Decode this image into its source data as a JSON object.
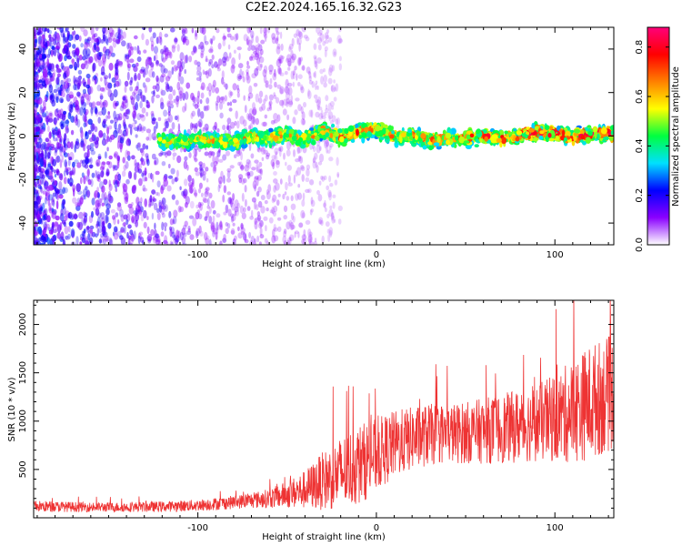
{
  "title": "C2E2.2024.165.16.32.G23",
  "chart_data": [
    {
      "type": "heatmap",
      "xlabel": "Height of straight line (km)",
      "ylabel": "Frequency (Hz)",
      "xlim": [
        -192,
        133
      ],
      "ylim": [
        -50,
        50
      ],
      "xticks": [
        -100,
        0,
        100
      ],
      "yticks": [
        -40,
        -20,
        0,
        20,
        40
      ],
      "colorbar": {
        "label": "Normalized spectral amplitude",
        "range": [
          0.0,
          0.88
        ],
        "ticks": [
          0.0,
          0.2,
          0.4,
          0.6,
          0.8
        ],
        "colors": [
          "#ffffff",
          "#8a00ff",
          "#0000ff",
          "#00e0ff",
          "#00ff40",
          "#ffff00",
          "#ff8000",
          "#ff0000",
          "#ff007a"
        ]
      },
      "ridge": {
        "x": [
          -122,
          -110,
          -100,
          -90,
          -80,
          -70,
          -60,
          -50,
          -40,
          -30,
          -20,
          -10,
          0,
          10,
          20,
          30,
          40,
          50,
          60,
          70,
          80,
          90,
          100,
          110,
          120,
          133
        ],
        "y": [
          -2,
          -3,
          -1,
          -2,
          -3,
          0,
          -1,
          1,
          -2,
          3,
          -1,
          2,
          3,
          0,
          0,
          -2,
          -1,
          -1,
          0,
          -1,
          0,
          2,
          1,
          0,
          1,
          1
        ],
        "peak_amplitude_range": [
          0.3,
          0.85
        ]
      },
      "noise_extent_x": [
        -192,
        -20
      ]
    },
    {
      "type": "line",
      "xlabel": "Height of straight line (km)",
      "ylabel": "SNR (10 * v/v)",
      "xlim": [
        -192,
        133
      ],
      "ylim": [
        0,
        2250
      ],
      "xticks": [
        -100,
        0,
        100
      ],
      "yticks": [
        500,
        1000,
        1500,
        2000
      ],
      "color": "#ee3333",
      "series": [
        {
          "x": [
            -192,
            -180,
            -160,
            -140,
            -120,
            -100,
            -80,
            -70,
            -60,
            -50,
            -40,
            -30,
            -20,
            -10,
            0,
            10,
            20,
            30,
            40,
            50,
            60,
            70,
            80,
            90,
            100,
            110,
            120,
            133
          ],
          "y": [
            120,
            115,
            110,
            110,
            115,
            130,
            160,
            180,
            200,
            240,
            290,
            380,
            460,
            550,
            650,
            760,
            820,
            860,
            870,
            880,
            900,
            920,
            950,
            980,
            1030,
            1100,
            1200,
            1300
          ],
          "spread": [
            60,
            55,
            50,
            50,
            55,
            60,
            70,
            80,
            100,
            140,
            200,
            300,
            380,
            420,
            380,
            350,
            330,
            320,
            310,
            320,
            340,
            360,
            380,
            400,
            460,
            540,
            600,
            600
          ]
        }
      ]
    }
  ]
}
